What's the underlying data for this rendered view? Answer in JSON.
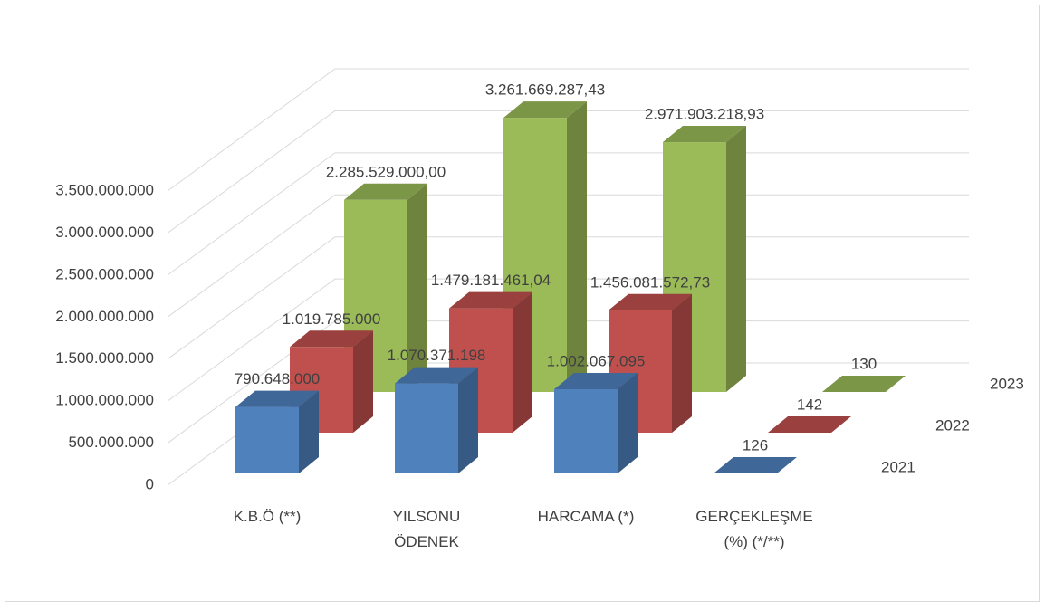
{
  "chart_data": {
    "type": "bar3d",
    "categories": [
      "K.B.Ö (**)",
      "YILSONU ÖDENEK",
      "HARCAMA (*)",
      "GERÇEKLEŞME (%) (*/**)"
    ],
    "series": [
      {
        "name": "2021",
        "color": "#4f81bd",
        "values": [
          790648000,
          1070371198,
          1002067095,
          126
        ],
        "value_labels": [
          "790.648.000",
          "1.070.371.198",
          "1.002.067.095",
          "126"
        ]
      },
      {
        "name": "2022",
        "color": "#c0504d",
        "values": [
          1019785000,
          1479181461.04,
          1456081572.73,
          142
        ],
        "value_labels": [
          "1.019.785.000",
          "1.479.181.461,04",
          "1.456.081.572,73",
          "142"
        ]
      },
      {
        "name": "2023",
        "color": "#9bbb59",
        "values": [
          2285529000.0,
          3261669287.43,
          2971903218.93,
          130
        ],
        "value_labels": [
          "2.285.529.000,00",
          "3.261.669.287,43",
          "2.971.903.218,93",
          "130"
        ]
      }
    ],
    "ylim": [
      0,
      3500000000
    ],
    "yticks": [
      0,
      {
        "value": 500000000,
        "label": "500.000.000"
      },
      {
        "value": 1000000000,
        "label": "1.000.000.000"
      },
      {
        "value": 1500000000,
        "label": "1.500.000.000"
      },
      {
        "value": 2000000000,
        "label": "2.000.000.000"
      },
      {
        "value": 2500000000,
        "label": "2.500.000.000"
      },
      {
        "value": 3000000000,
        "label": "3.000.000.000"
      },
      {
        "value": 3500000000,
        "label": "3.500.000.000"
      }
    ],
    "grid": true
  }
}
